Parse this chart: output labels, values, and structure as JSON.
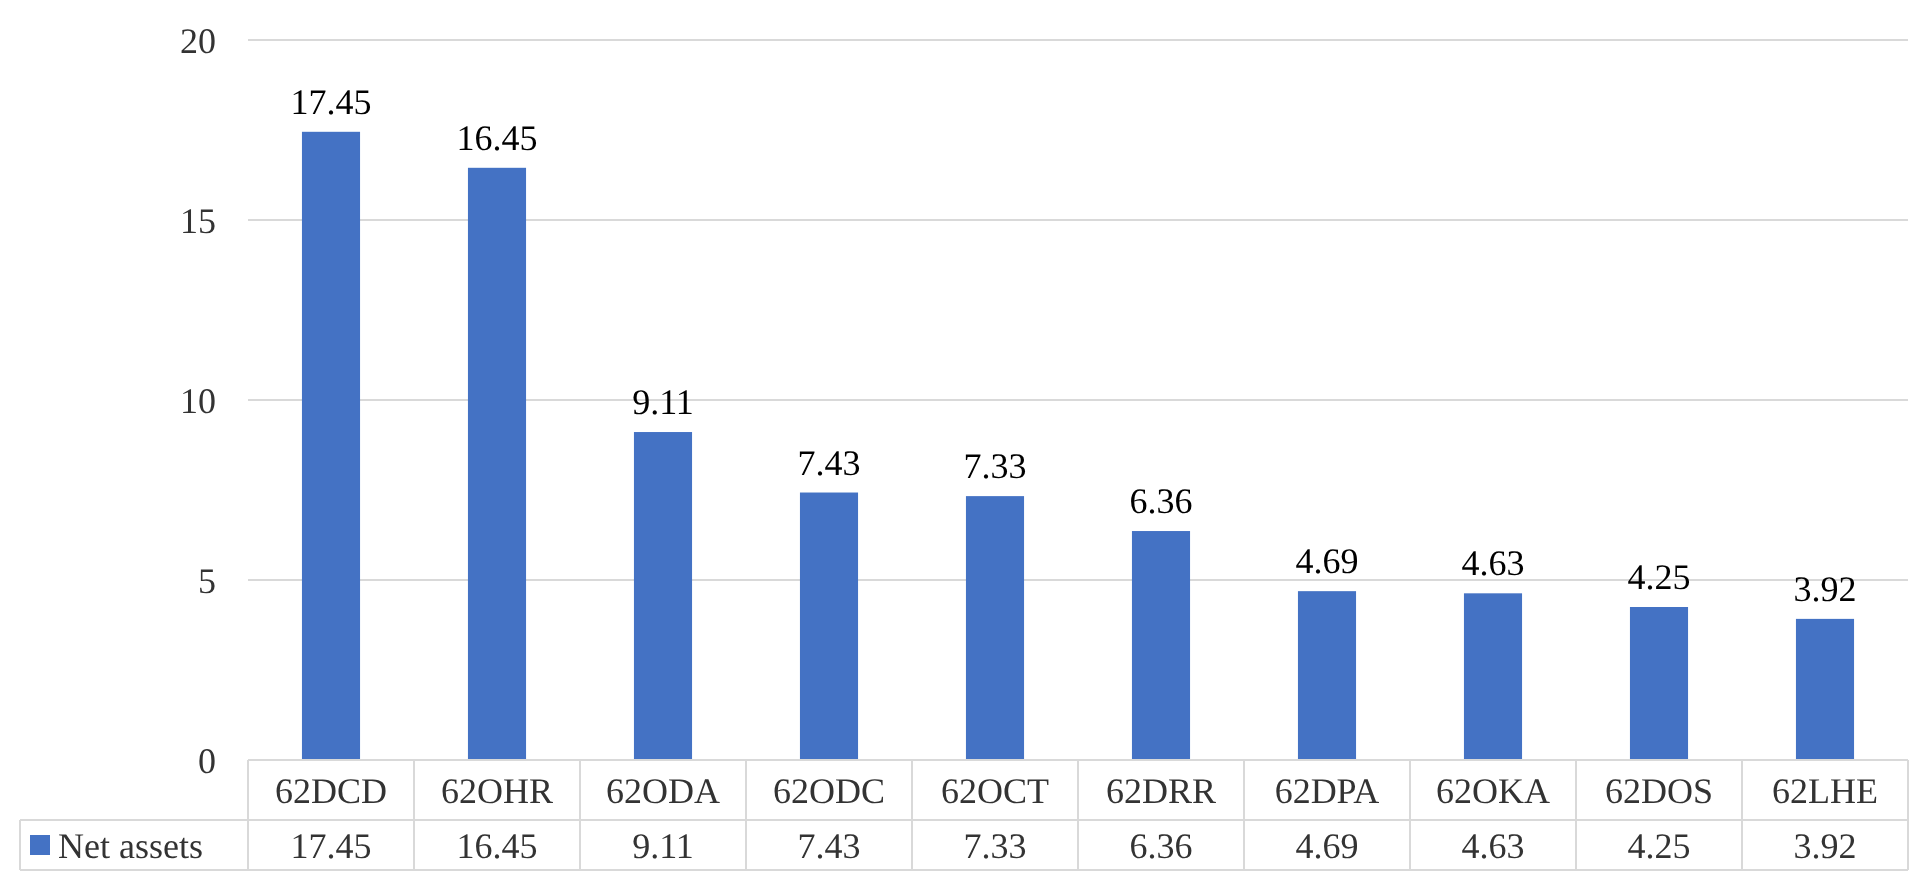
{
  "chart_data": {
    "type": "bar",
    "categories": [
      "62DCD",
      "62OHR",
      "62ODA",
      "62ODC",
      "62OCT",
      "62DRR",
      "62DPA",
      "62OKA",
      "62DOS",
      "62LHE"
    ],
    "series": [
      {
        "name": "Net assets",
        "color": "#4472c4",
        "values": [
          17.45,
          16.45,
          9.11,
          7.43,
          7.33,
          6.36,
          4.69,
          4.63,
          4.25,
          3.92
        ]
      }
    ],
    "ylim": [
      0,
      20
    ],
    "yticks": [
      0,
      5,
      10,
      15,
      20
    ],
    "grid": "y",
    "data_labels": true,
    "legend": "bottom",
    "annotations": [
      {
        "text": "17.45",
        "x": "62DCD",
        "y": 17.45
      },
      {
        "text": "16.45",
        "x": "62OHR",
        "y": 16.45
      },
      {
        "text": "9.11",
        "x": "62ODA",
        "y": 9.11
      },
      {
        "text": "7.43",
        "x": "62ODC",
        "y": 7.43
      },
      {
        "text": "7.33",
        "x": "62OCT",
        "y": 7.33
      },
      {
        "text": "6.36",
        "x": "62DRR",
        "y": 6.36
      },
      {
        "text": "4.69",
        "x": "62DPA",
        "y": 4.69
      },
      {
        "text": "4.63",
        "x": "62OKA",
        "y": 4.63
      },
      {
        "text": "4.25",
        "x": "62DOS",
        "y": 4.25
      },
      {
        "text": "3.92",
        "x": "62LHE",
        "y": 3.92
      }
    ]
  }
}
